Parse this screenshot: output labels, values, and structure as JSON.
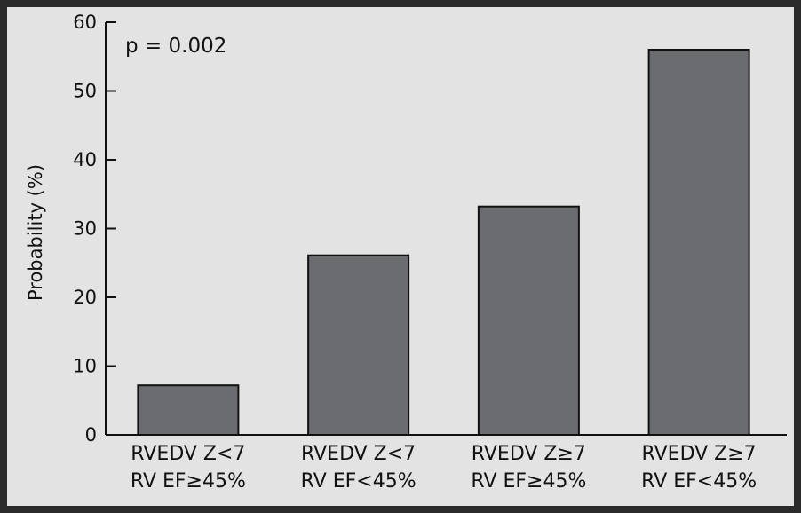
{
  "chart_data": {
    "type": "bar",
    "categories": [
      [
        "RVEDV Z<7",
        "RV EF≥45%"
      ],
      [
        "RVEDV Z<7",
        "RV EF<45%"
      ],
      [
        "RVEDV Z≥7",
        "RV EF≥45%"
      ],
      [
        "RVEDV Z≥7",
        "RV EF<45%"
      ]
    ],
    "values": [
      7.2,
      26.1,
      33.2,
      56.0
    ],
    "ylabel": "Probability (%)",
    "xlabel": "",
    "ylim": [
      0,
      60
    ],
    "yticks": [
      0,
      10,
      20,
      30,
      40,
      50,
      60
    ],
    "annotation": "p = 0.002",
    "grid": false,
    "colors": {
      "bar": "#6b6c70",
      "background": "#e3e3e3",
      "frame": "#2b2b2b",
      "axis": "#111111"
    }
  }
}
